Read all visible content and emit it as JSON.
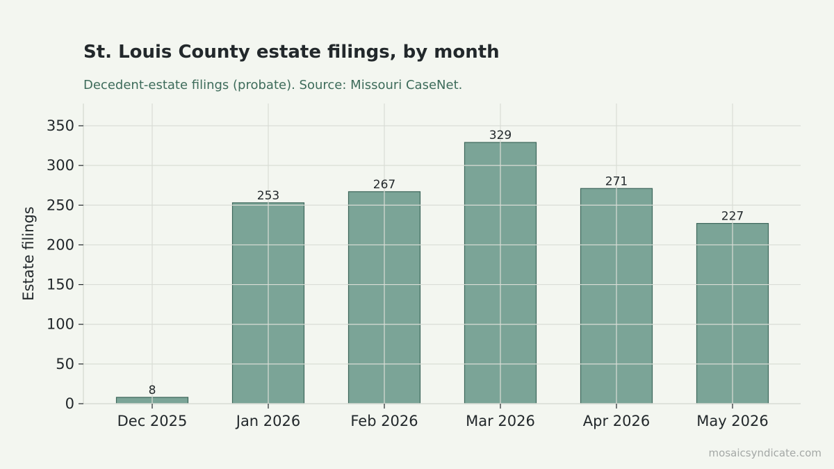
{
  "title": "St. Louis County estate filings, by month",
  "subtitle": "Decedent-estate filings (probate). Source: Missouri CaseNet.",
  "watermark": "mosaicsyndicate.com",
  "colors": {
    "background": "#f3f6f0",
    "bar_fill": "#7ba497",
    "bar_stroke": "#3d665b",
    "grid": "#d9ddd6",
    "text": "#22282b",
    "subtitle": "#3d6b5a",
    "watermark": "#a4a8a6"
  },
  "chart_data": {
    "type": "bar",
    "title": "St. Louis County estate filings, by month",
    "subtitle": "Decedent-estate filings (probate). Source: Missouri CaseNet.",
    "categories": [
      "Dec 2025",
      "Jan 2026",
      "Feb 2026",
      "Mar 2026",
      "Apr 2026",
      "May 2026"
    ],
    "values": [
      8,
      253,
      267,
      329,
      271,
      227
    ],
    "data_labels": [
      "8",
      "253",
      "267",
      "329",
      "271",
      "227"
    ],
    "xlabel": "",
    "ylabel": "Estate filings",
    "ylim": [
      0,
      378
    ],
    "yticks": [
      0,
      50,
      100,
      150,
      200,
      250,
      300,
      350
    ],
    "ytick_labels": [
      "0",
      "50",
      "100",
      "150",
      "200",
      "250",
      "300",
      "350"
    ],
    "grid": true,
    "legend": "none"
  }
}
